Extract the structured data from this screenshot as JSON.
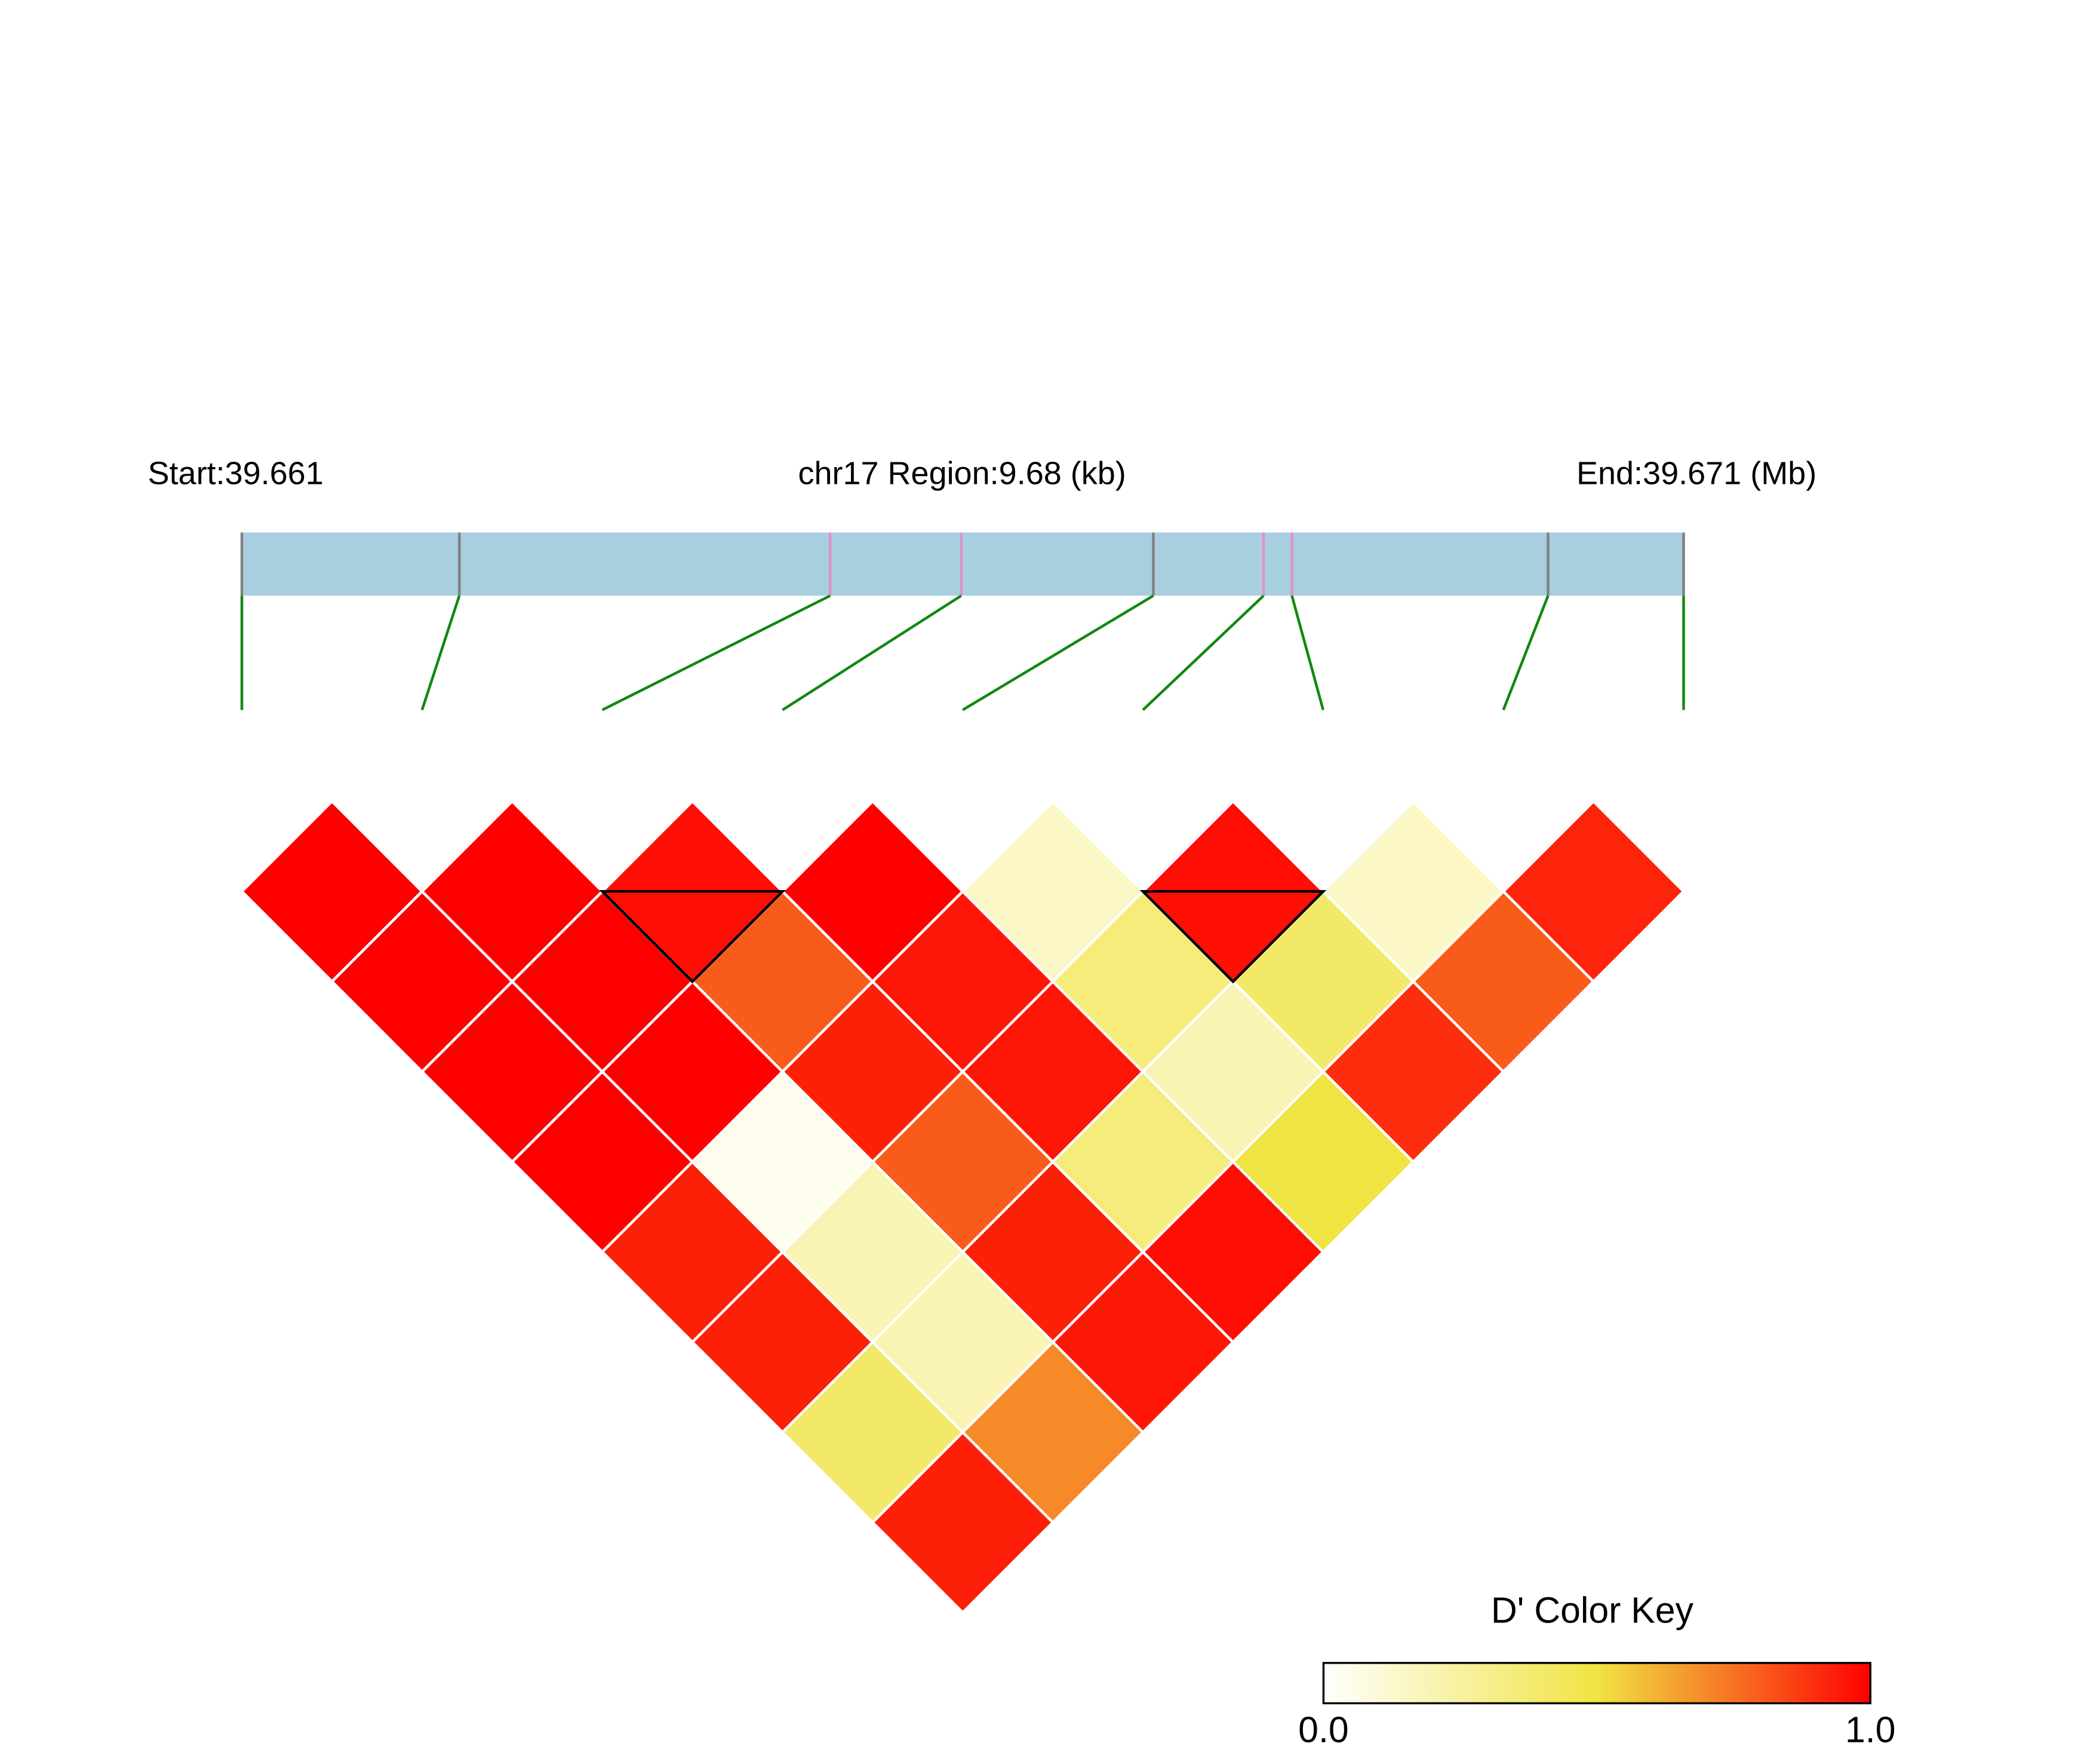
{
  "chart_data": {
    "type": "ld-heatmap",
    "start_label": "Start:39.661",
    "region_label": "chr17 Region:9.68 (kb)",
    "end_label": "End:39.671 (Mb)",
    "region_length": 9.68,
    "snp_positions": [
      0,
      1.46,
      3.95,
      4.83,
      6.12,
      6.86,
      7.05,
      8.77,
      9.68
    ],
    "snp_colors": [
      "#808080",
      "#808080",
      "#e090c8",
      "#e090c8",
      "#808080",
      "#e090c8",
      "#e090c8",
      "#808080",
      "#808080"
    ],
    "bar_color": "#a8cfe0",
    "connector_color": "#118811",
    "values": [
      [
        1.0,
        1.0,
        1.0,
        1.0,
        0.93,
        0.93,
        0.4,
        0.93
      ],
      [
        1.0,
        1.0,
        1.0,
        0.05,
        0.2,
        0.2,
        0.7
      ],
      [
        0.97,
        0.8,
        0.93,
        0.8,
        0.93,
        0.95
      ],
      [
        1.0,
        0.95,
        0.95,
        0.35,
        0.97
      ],
      [
        0.15,
        0.35,
        0.2,
        0.5
      ],
      [
        0.97,
        0.4,
        0.9
      ],
      [
        0.15,
        0.8
      ],
      [
        0.92
      ]
    ],
    "blocks": [
      [
        2,
        3
      ],
      [
        5,
        6
      ]
    ],
    "colorscale": [
      "#ffffff",
      "#f0e442",
      "#ff0000"
    ],
    "legend_title": "D' Color Key",
    "legend_ticks": [
      {
        "value": 0,
        "label": "0.0"
      },
      {
        "value": 1,
        "label": "1.0"
      }
    ]
  }
}
